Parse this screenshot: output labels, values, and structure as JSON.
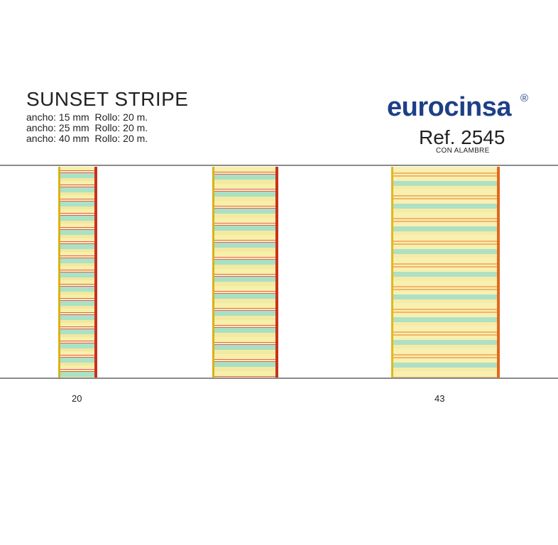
{
  "product": {
    "title": "SUNSET STRIPE",
    "specs": [
      "ancho: 15 mm  Rollo: 20 m.",
      "ancho: 25 mm  Rollo: 20 m.",
      "ancho: 40 mm  Rollo: 20 m."
    ]
  },
  "brand": {
    "name": "eurocinsa",
    "registered": "®",
    "color": "#1e3f88"
  },
  "reference": {
    "label": "Ref. 2545",
    "note": "CON ALAMBRE"
  },
  "swatches": [
    {
      "code": "20"
    },
    {
      "code": "43"
    }
  ]
}
